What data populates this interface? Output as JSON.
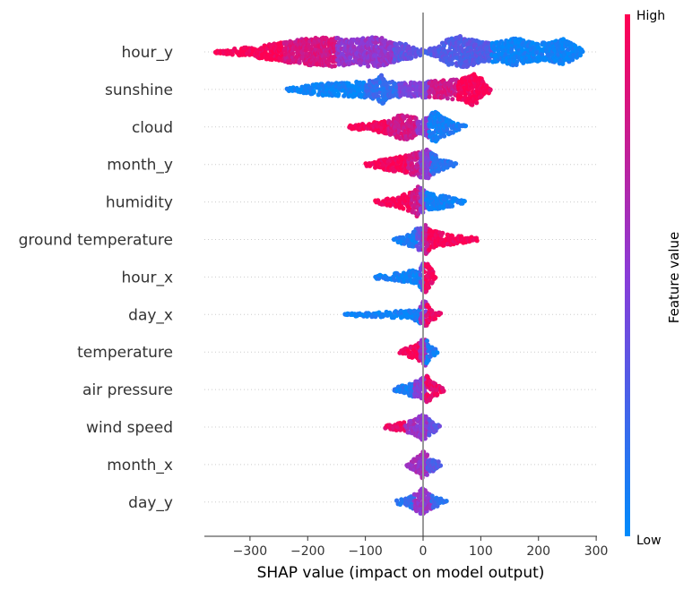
{
  "chart_data": {
    "type": "scatter",
    "subtype": "shap-beeswarm",
    "title": "",
    "xlabel": "SHAP value (impact on model output)",
    "ylabel": "",
    "xlim": [
      -385,
      310
    ],
    "xticks": [
      -300,
      -200,
      -100,
      0,
      100,
      200,
      300
    ],
    "xtick_labels": [
      "−300",
      "−200",
      "−100",
      "0",
      "100",
      "200",
      "300"
    ],
    "zero_line": true,
    "grid": false,
    "colorbar": {
      "title": "Feature value",
      "high_label": "High",
      "low_label": "Low",
      "high_color": "#ff0052",
      "mid_color": "#8a3cd8",
      "low_color": "#008bfb",
      "placement": "right"
    },
    "features": [
      {
        "name": "hour_y",
        "min": -360,
        "max": 278,
        "low_side": "right",
        "color_segments": [
          [
            -360,
            -240,
            0.98
          ],
          [
            -240,
            -150,
            0.82
          ],
          [
            -150,
            -50,
            0.55
          ],
          [
            -50,
            0,
            0.35
          ],
          [
            0,
            120,
            0.3
          ],
          [
            120,
            278,
            0.05
          ]
        ],
        "profile": [
          [
            -360,
            0.06
          ],
          [
            -300,
            0.3
          ],
          [
            -250,
            0.55
          ],
          [
            -200,
            0.85
          ],
          [
            -160,
            0.9
          ],
          [
            -120,
            0.78
          ],
          [
            -80,
            0.95
          ],
          [
            -50,
            0.65
          ],
          [
            -10,
            0.3
          ],
          [
            0,
            0.12
          ],
          [
            20,
            0.3
          ],
          [
            50,
            0.9
          ],
          [
            70,
            1.0
          ],
          [
            100,
            0.65
          ],
          [
            130,
            0.6
          ],
          [
            160,
            0.85
          ],
          [
            190,
            0.6
          ],
          [
            220,
            0.55
          ],
          [
            240,
            0.85
          ],
          [
            262,
            0.45
          ],
          [
            278,
            0.08
          ]
        ]
      },
      {
        "name": "sunshine",
        "min": -235,
        "max": 118,
        "low_side": "left",
        "color_segments": [
          [
            -235,
            -100,
            0.04
          ],
          [
            -100,
            -40,
            0.18
          ],
          [
            -40,
            10,
            0.45
          ],
          [
            10,
            60,
            0.8
          ],
          [
            60,
            118,
            0.98
          ]
        ],
        "profile": [
          [
            -235,
            0.08
          ],
          [
            -180,
            0.35
          ],
          [
            -120,
            0.45
          ],
          [
            -80,
            0.6
          ],
          [
            -70,
            0.95
          ],
          [
            -60,
            0.5
          ],
          [
            -20,
            0.45
          ],
          [
            0,
            0.5
          ],
          [
            30,
            0.55
          ],
          [
            50,
            0.6
          ],
          [
            70,
            0.7
          ],
          [
            85,
            1.0
          ],
          [
            100,
            0.75
          ],
          [
            110,
            0.35
          ],
          [
            118,
            0.08
          ]
        ]
      },
      {
        "name": "cloud",
        "min": -128,
        "max": 75,
        "low_side": "right",
        "color_segments": [
          [
            -128,
            -60,
            0.96
          ],
          [
            -60,
            -10,
            0.8
          ],
          [
            -10,
            10,
            0.5
          ],
          [
            10,
            75,
            0.08
          ]
        ],
        "profile": [
          [
            -128,
            0.1
          ],
          [
            -90,
            0.25
          ],
          [
            -60,
            0.45
          ],
          [
            -35,
            0.8
          ],
          [
            -20,
            0.7
          ],
          [
            -5,
            0.4
          ],
          [
            10,
            0.65
          ],
          [
            20,
            1.0
          ],
          [
            35,
            0.6
          ],
          [
            55,
            0.3
          ],
          [
            75,
            0.08
          ]
        ]
      },
      {
        "name": "month_y",
        "min": -100,
        "max": 58,
        "low_side": "right",
        "color_segments": [
          [
            -100,
            -25,
            0.97
          ],
          [
            -25,
            -5,
            0.8
          ],
          [
            -5,
            15,
            0.5
          ],
          [
            15,
            58,
            0.15
          ]
        ],
        "profile": [
          [
            -100,
            0.1
          ],
          [
            -60,
            0.35
          ],
          [
            -25,
            0.6
          ],
          [
            -10,
            0.75
          ],
          [
            0,
            0.85
          ],
          [
            5,
            1.0
          ],
          [
            15,
            0.7
          ],
          [
            30,
            0.35
          ],
          [
            58,
            0.08
          ]
        ]
      },
      {
        "name": "humidity",
        "min": -82,
        "max": 72,
        "low_side": "right",
        "color_segments": [
          [
            -82,
            -20,
            0.97
          ],
          [
            -20,
            -5,
            0.8
          ],
          [
            -5,
            5,
            0.5
          ],
          [
            5,
            72,
            0.07
          ]
        ],
        "profile": [
          [
            -82,
            0.1
          ],
          [
            -50,
            0.3
          ],
          [
            -20,
            0.6
          ],
          [
            -8,
            0.95
          ],
          [
            0,
            0.8
          ],
          [
            10,
            0.55
          ],
          [
            40,
            0.35
          ],
          [
            72,
            0.08
          ]
        ]
      },
      {
        "name": "ground temperature",
        "min": -50,
        "max": 95,
        "low_side": "left",
        "color_segments": [
          [
            -50,
            -10,
            0.08
          ],
          [
            -10,
            0,
            0.35
          ],
          [
            0,
            10,
            0.75
          ],
          [
            10,
            95,
            0.97
          ]
        ],
        "profile": [
          [
            -50,
            0.1
          ],
          [
            -25,
            0.4
          ],
          [
            -10,
            0.7
          ],
          [
            0,
            0.75
          ],
          [
            5,
            0.9
          ],
          [
            15,
            0.55
          ],
          [
            40,
            0.35
          ],
          [
            70,
            0.25
          ],
          [
            95,
            0.08
          ]
        ]
      },
      {
        "name": "hour_x",
        "min": -82,
        "max": 22,
        "low_side": "left",
        "color_segments": [
          [
            -82,
            -5,
            0.06
          ],
          [
            -5,
            2,
            0.4
          ],
          [
            2,
            22,
            0.94
          ]
        ],
        "profile": [
          [
            -82,
            0.1
          ],
          [
            -40,
            0.25
          ],
          [
            -10,
            0.5
          ],
          [
            0,
            0.85
          ],
          [
            6,
            1.0
          ],
          [
            14,
            0.5
          ],
          [
            22,
            0.1
          ]
        ]
      },
      {
        "name": "day_x",
        "min": -135,
        "max": 30,
        "low_side": "left",
        "color_segments": [
          [
            -135,
            -5,
            0.05
          ],
          [
            -5,
            5,
            0.55
          ],
          [
            5,
            30,
            0.92
          ]
        ],
        "profile": [
          [
            -135,
            0.07
          ],
          [
            -100,
            0.12
          ],
          [
            -60,
            0.18
          ],
          [
            -20,
            0.25
          ],
          [
            -5,
            0.55
          ],
          [
            2,
            0.9
          ],
          [
            10,
            0.45
          ],
          [
            30,
            0.08
          ]
        ]
      },
      {
        "name": "temperature",
        "min": -40,
        "max": 25,
        "low_side": "right",
        "color_segments": [
          [
            -40,
            -5,
            0.96
          ],
          [
            -5,
            5,
            0.6
          ],
          [
            5,
            25,
            0.1
          ]
        ],
        "profile": [
          [
            -40,
            0.1
          ],
          [
            -20,
            0.35
          ],
          [
            -5,
            0.7
          ],
          [
            3,
            0.9
          ],
          [
            12,
            0.4
          ],
          [
            25,
            0.08
          ]
        ]
      },
      {
        "name": "air pressure",
        "min": -50,
        "max": 38,
        "low_side": "left",
        "color_segments": [
          [
            -50,
            -15,
            0.1
          ],
          [
            -15,
            5,
            0.5
          ],
          [
            5,
            38,
            0.92
          ]
        ],
        "profile": [
          [
            -50,
            0.1
          ],
          [
            -30,
            0.3
          ],
          [
            -10,
            0.55
          ],
          [
            0,
            0.75
          ],
          [
            5,
            0.9
          ],
          [
            15,
            0.5
          ],
          [
            38,
            0.1
          ]
        ]
      },
      {
        "name": "wind speed",
        "min": -65,
        "max": 28,
        "low_side": "right",
        "color_segments": [
          [
            -65,
            -30,
            0.92
          ],
          [
            -30,
            -10,
            0.6
          ],
          [
            -10,
            10,
            0.55
          ],
          [
            10,
            28,
            0.35
          ]
        ],
        "profile": [
          [
            -65,
            0.1
          ],
          [
            -45,
            0.22
          ],
          [
            -25,
            0.35
          ],
          [
            -10,
            0.55
          ],
          [
            0,
            0.85
          ],
          [
            10,
            0.5
          ],
          [
            28,
            0.1
          ]
        ]
      },
      {
        "name": "month_x",
        "min": -28,
        "max": 30,
        "low_side": "right",
        "color_segments": [
          [
            -28,
            -8,
            0.6
          ],
          [
            -8,
            8,
            0.6
          ],
          [
            8,
            30,
            0.3
          ]
        ],
        "profile": [
          [
            -28,
            0.1
          ],
          [
            -10,
            0.5
          ],
          [
            0,
            0.85
          ],
          [
            10,
            0.55
          ],
          [
            30,
            0.1
          ]
        ]
      },
      {
        "name": "day_y",
        "min": -45,
        "max": 40,
        "low_side": "left",
        "color_segments": [
          [
            -45,
            -15,
            0.15
          ],
          [
            -15,
            15,
            0.55
          ],
          [
            15,
            40,
            0.2
          ]
        ],
        "profile": [
          [
            -45,
            0.1
          ],
          [
            -20,
            0.35
          ],
          [
            0,
            0.85
          ],
          [
            15,
            0.4
          ],
          [
            40,
            0.08
          ]
        ]
      }
    ]
  }
}
